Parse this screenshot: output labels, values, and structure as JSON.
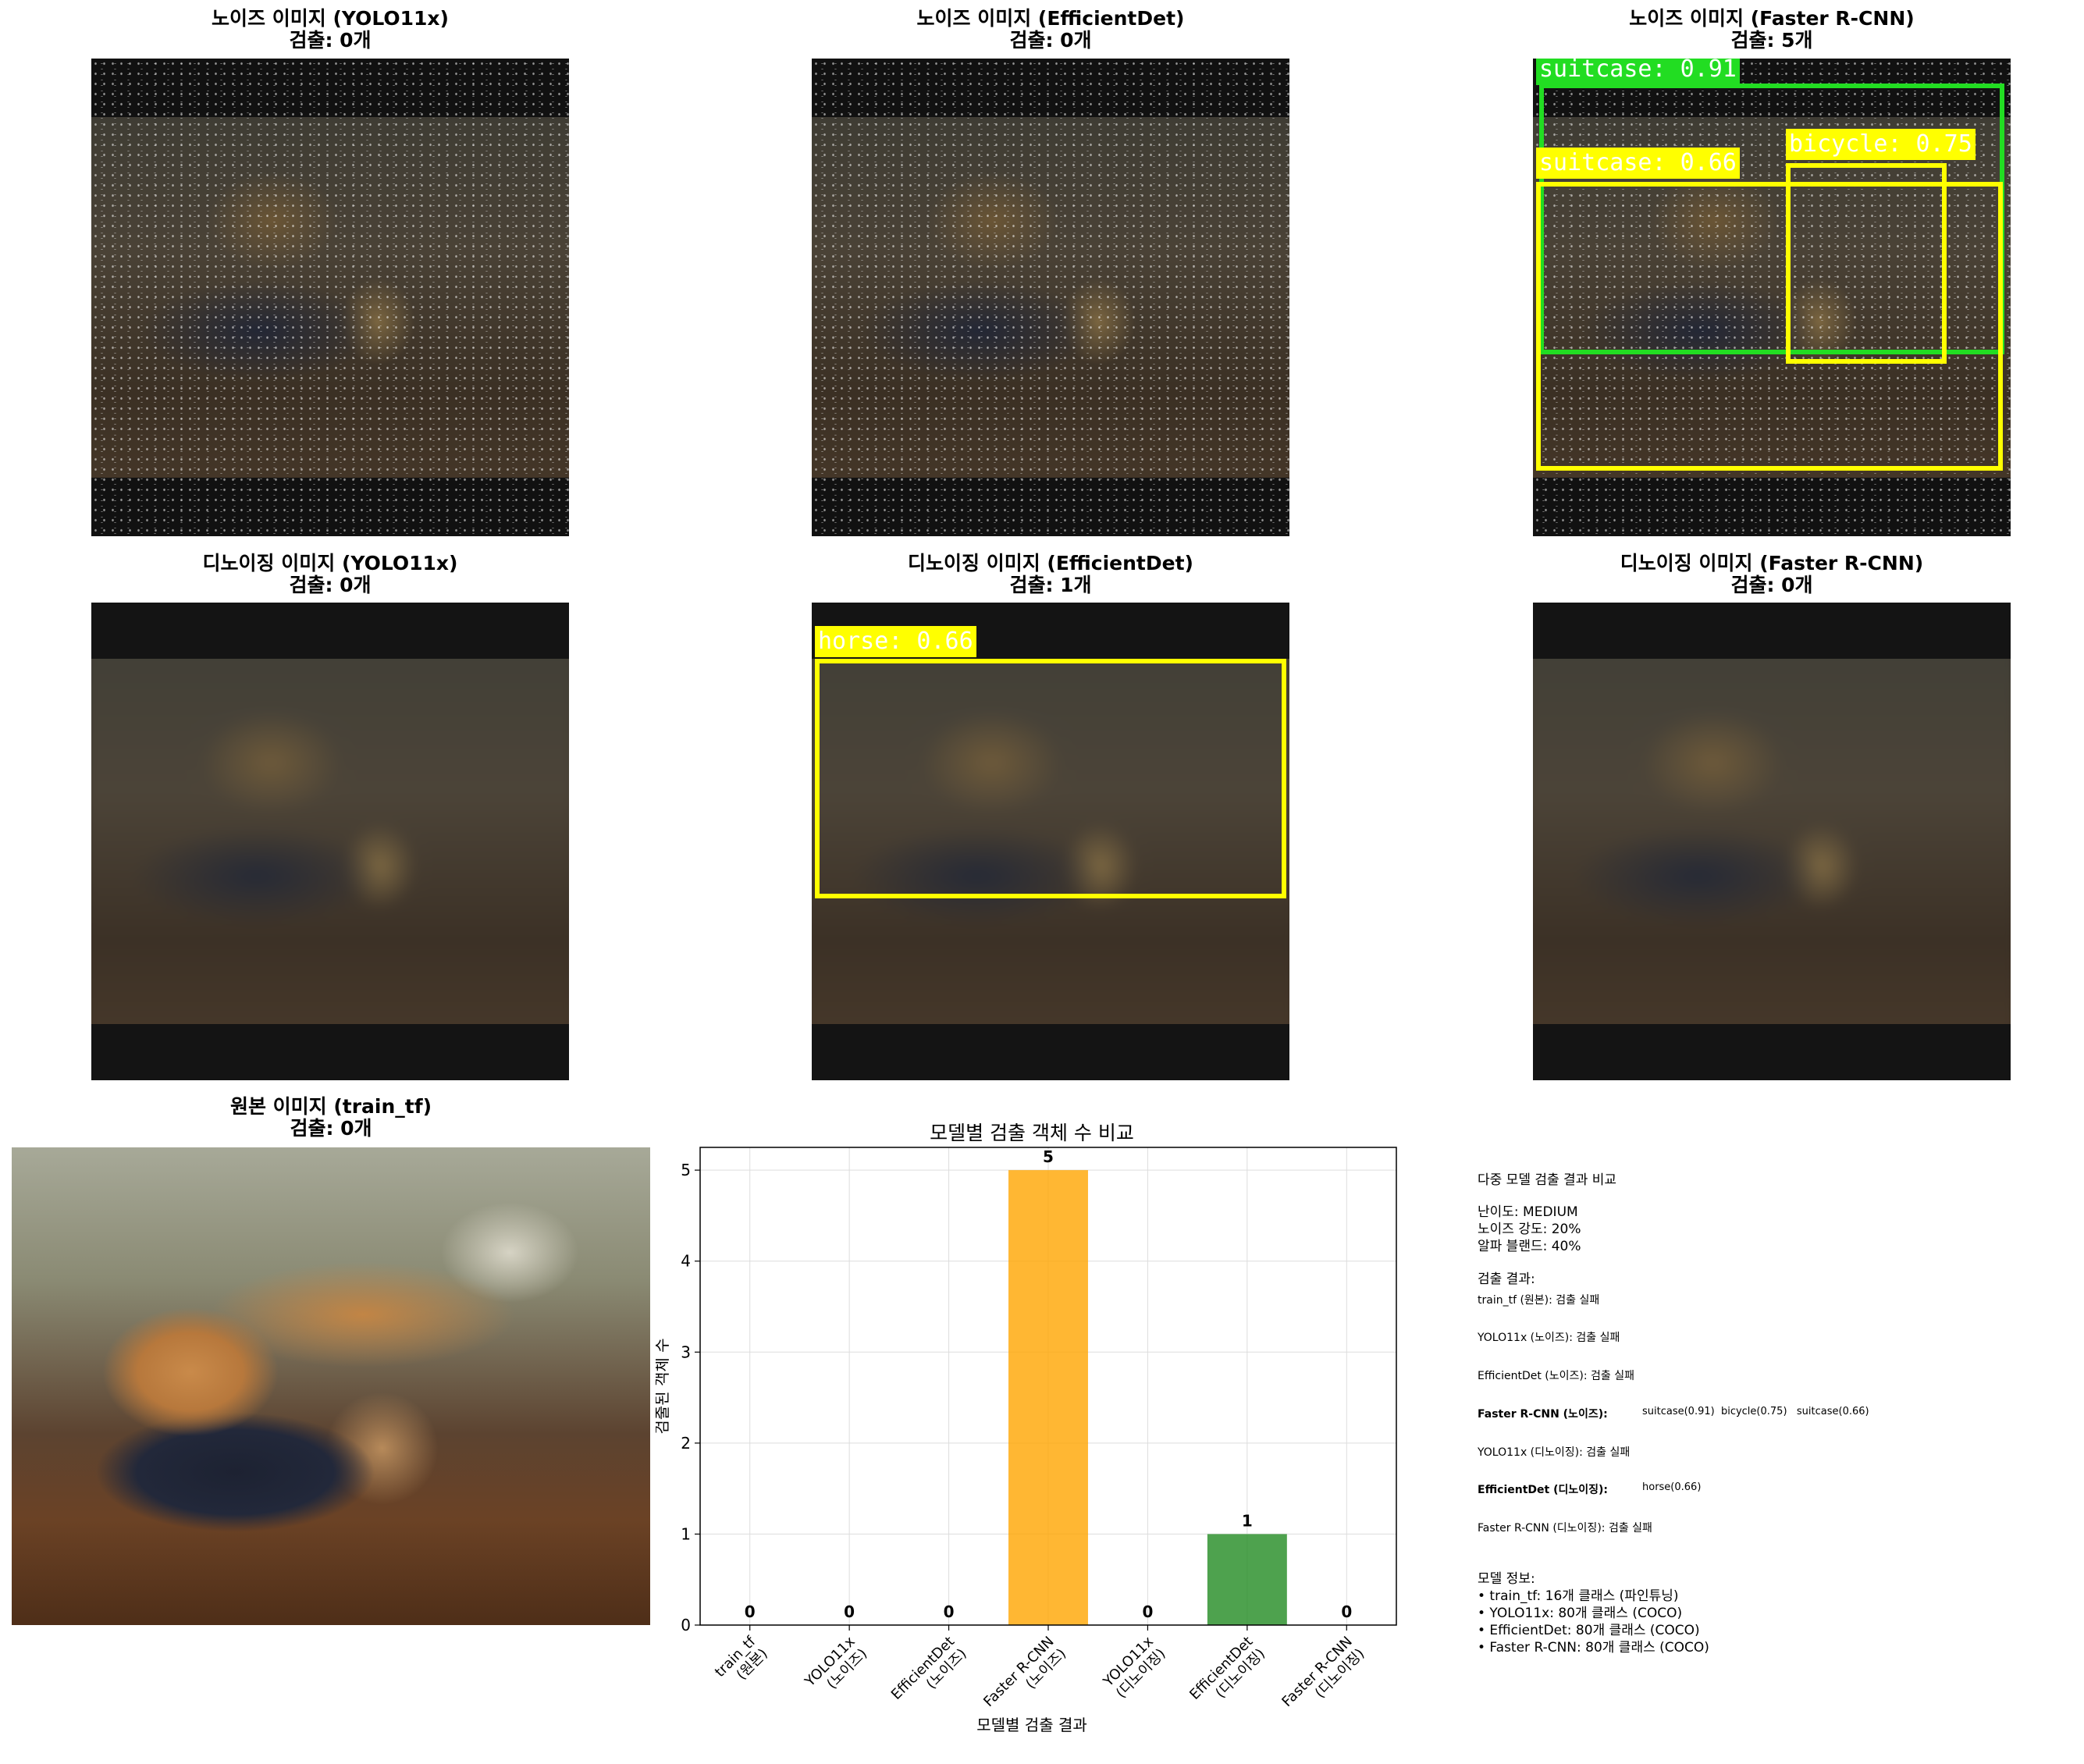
{
  "panels": {
    "noise_yolo": {
      "title_line1": "노이즈 이미지 (YOLO11x)",
      "title_line2": "검출: 0개"
    },
    "noise_effdet": {
      "title_line1": "노이즈 이미지 (EfficientDet)",
      "title_line2": "검출: 0개"
    },
    "noise_frcnn": {
      "title_line1": "노이즈 이미지 (Faster R-CNN)",
      "title_line2": "검출: 5개",
      "boxes": [
        {
          "label": "suitcase: 0.91",
          "color": "#22dd22"
        },
        {
          "label": "bicycle: 0.75",
          "color": "#ffff00"
        },
        {
          "label": "suitcase: 0.66",
          "color": "#ffff00"
        }
      ]
    },
    "den_yolo": {
      "title_line1": "디노이징 이미지 (YOLO11x)",
      "title_line2": "검출: 0개"
    },
    "den_effdet": {
      "title_line1": "디노이징 이미지 (EfficientDet)",
      "title_line2": "검출: 1개",
      "boxes": [
        {
          "label": "horse: 0.66",
          "color": "#ffff00"
        }
      ]
    },
    "den_frcnn": {
      "title_line1": "디노이징 이미지 (Faster R-CNN)",
      "title_line2": "검출: 0개"
    },
    "original": {
      "title_line1": "원본 이미지 (train_tf)",
      "title_line2": "검출: 0개"
    }
  },
  "chart_data": {
    "type": "bar",
    "title": "모델별 검출 객체 수 비교",
    "xlabel": "모델별 검출 결과",
    "ylabel": "검출된 객체 수",
    "categories": [
      [
        "train_tf",
        "(원본)"
      ],
      [
        "YOLO11x",
        "(노이즈)"
      ],
      [
        "EfficientDet",
        "(노이즈)"
      ],
      [
        "Faster R-CNN",
        "(노이즈)"
      ],
      [
        "YOLO11x",
        "(디노이징)"
      ],
      [
        "EfficientDet",
        "(디노이징)"
      ],
      [
        "Faster R-CNN",
        "(디노이징)"
      ]
    ],
    "values": [
      0,
      0,
      0,
      5,
      0,
      1,
      0
    ],
    "bar_colors": [
      "#ff6b6b",
      "#ff6b6b",
      "#ff6b6b",
      "#ffa500",
      "#ff6b6b",
      "#228b22",
      "#ff6b6b"
    ],
    "ylim": [
      0,
      5.25
    ],
    "yticks": [
      0,
      1,
      2,
      3,
      4,
      5
    ],
    "grid": true
  },
  "info": {
    "heading": "다중 모델 검출 결과 비교",
    "difficulty": "난이도: MEDIUM",
    "noise": "노이즈 강도: 20%",
    "alpha": "알파 블랜드: 40%",
    "results_heading": "검출 결과:",
    "r1": "train_tf (원본): 검출 실패",
    "r2": "YOLO11x (노이즈): 검출 실패",
    "r3": "EfficientDet (노이즈): 검출 실패",
    "r4_label": "Faster R-CNN (노이즈):",
    "r4_value": "suitcase(0.91)  bicycle(0.75)   suitcase(0.66)",
    "r5": "YOLO11x (디노이징): 검출 실패",
    "r6_label": "EfficientDet (디노이징):",
    "r6_value": "horse(0.66)",
    "r7": "Faster R-CNN (디노이징): 검출 실패",
    "model_heading": "모델 정보:",
    "m1": "• train_tf: 16개 클래스 (파인튜닝)",
    "m2": "• YOLO11x: 80개 클래스 (COCO)",
    "m3": "• EfficientDet: 80개 클래스 (COCO)",
    "m4": "• Faster R-CNN: 80개 클래스 (COCO)"
  }
}
